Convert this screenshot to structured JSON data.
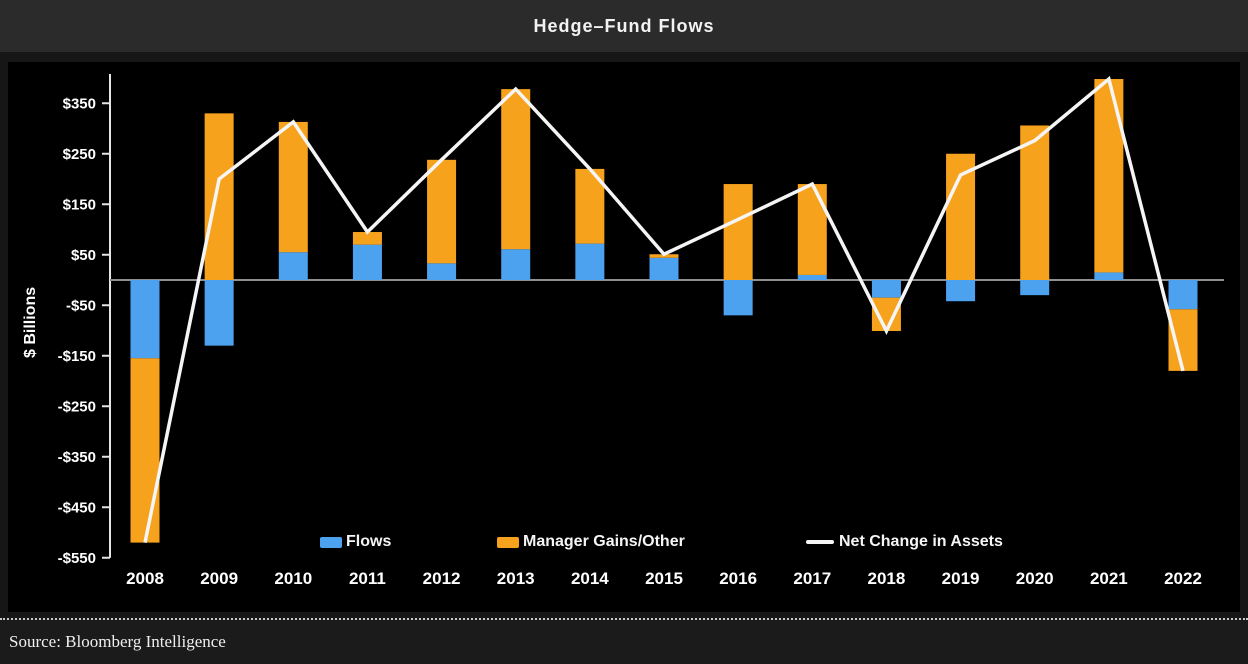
{
  "window": {
    "title": "Hedge–Fund Flows"
  },
  "source": {
    "label": "Source: Bloomberg Intelligence"
  },
  "legend": {
    "items": [
      {
        "label": "Flows",
        "color": "#4DA2F0",
        "swatch": "bar"
      },
      {
        "label": "Manager Gains/Other",
        "color": "#F7A21C",
        "swatch": "bar"
      },
      {
        "label": "Net Change in Assets",
        "color": "#F5F5F5",
        "swatch": "line"
      }
    ]
  },
  "chart_data": {
    "type": "bar",
    "subtype": "stacked-bars-with-line-overlay",
    "title": "Hedge–Fund Flows",
    "xlabel": "",
    "ylabel": "$ Billions",
    "categories": [
      "2008",
      "2009",
      "2010",
      "2011",
      "2012",
      "2013",
      "2014",
      "2015",
      "2016",
      "2017",
      "2018",
      "2019",
      "2020",
      "2021",
      "2022"
    ],
    "series": [
      {
        "name": "Flows",
        "type": "bar",
        "color": "#4DA2F0",
        "values": [
          -155,
          -130,
          55,
          70,
          33,
          61,
          72,
          44,
          -70,
          10,
          -35,
          -42,
          -30,
          15,
          -58
        ]
      },
      {
        "name": "Manager Gains/Other",
        "type": "bar",
        "color": "#F7A21C",
        "values": [
          -365,
          330,
          258,
          25,
          205,
          317,
          148,
          7,
          190,
          180,
          -66,
          250,
          306,
          383,
          -122
        ]
      },
      {
        "name": "Net Change in Assets",
        "type": "line",
        "color": "#F5F5F5",
        "values": [
          -520,
          200,
          313,
          95,
          238,
          378,
          220,
          51,
          120,
          190,
          -101,
          208,
          276,
          398,
          -180
        ]
      }
    ],
    "yticks": [
      350,
      250,
      150,
      50,
      -50,
      -150,
      -250,
      -350,
      -450,
      -550
    ],
    "ytick_labels": [
      "$350",
      "$250",
      "$150",
      "$50",
      "-$50",
      "-$150",
      "-$250",
      "-$350",
      "-$450",
      "-$550"
    ],
    "ylim": [
      -550,
      405
    ],
    "grid": false,
    "legend_position": "bottom-inside",
    "units": "USD billions"
  }
}
